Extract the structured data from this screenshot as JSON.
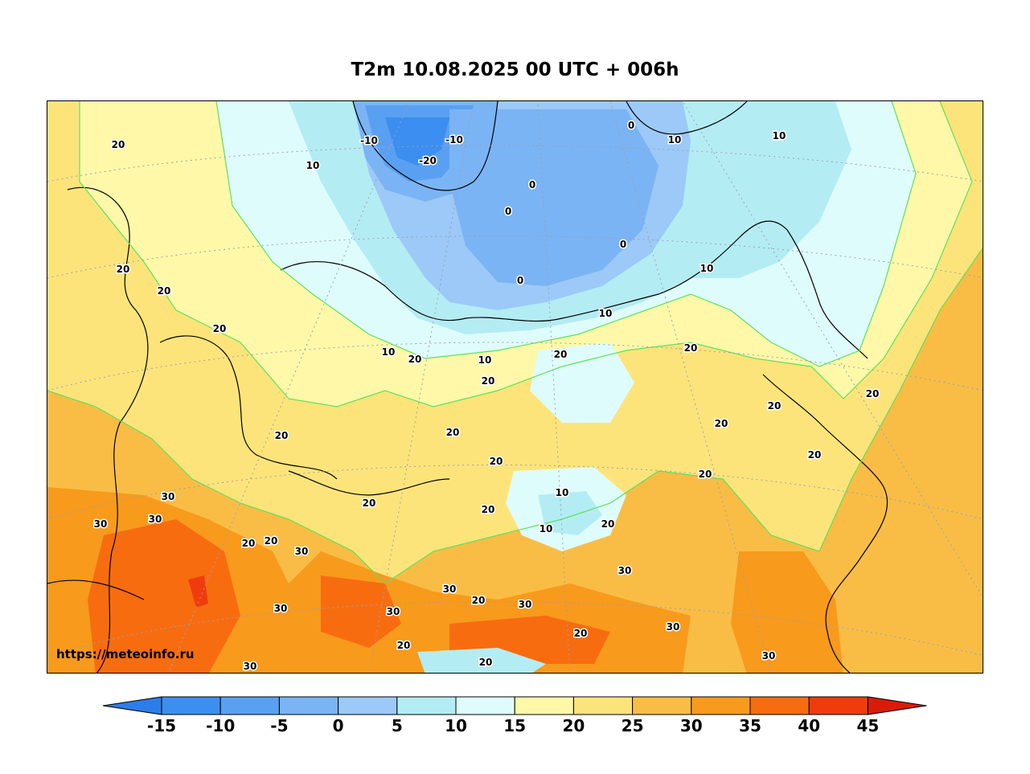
{
  "title": "T2m 10.08.2025 00 UTC + 006h",
  "watermark": "https://meteoinfo.ru",
  "colorbar": {
    "ticks": [
      "-15",
      "-10",
      "-5",
      "0",
      "5",
      "10",
      "15",
      "20",
      "25",
      "30",
      "35",
      "40",
      "45"
    ],
    "colors": [
      "#3c8ef0",
      "#5aa0f2",
      "#7ab4f5",
      "#9cc9f7",
      "#b4ecf4",
      "#dffcfc",
      "#fef8a8",
      "#fde47a",
      "#f9bd46",
      "#f89a1c",
      "#f86c10",
      "#f03c0c"
    ],
    "under_color": "#2d7de8",
    "over_color": "#d81c08"
  },
  "contour_labels": [
    {
      "text": "20"
    },
    {
      "text": "10"
    },
    {
      "text": "-10"
    },
    {
      "text": "-10"
    },
    {
      "text": "-20"
    },
    {
      "text": "0"
    },
    {
      "text": "0"
    },
    {
      "text": "0"
    },
    {
      "text": "0"
    },
    {
      "text": "10"
    },
    {
      "text": "10"
    },
    {
      "text": "10"
    },
    {
      "text": "0"
    },
    {
      "text": "20"
    },
    {
      "text": "20"
    },
    {
      "text": "20"
    },
    {
      "text": "10"
    },
    {
      "text": "20"
    },
    {
      "text": "10"
    },
    {
      "text": "20"
    },
    {
      "text": "20"
    },
    {
      "text": "10"
    },
    {
      "text": "20"
    },
    {
      "text": "20"
    },
    {
      "text": "20"
    },
    {
      "text": "20"
    },
    {
      "text": "20"
    },
    {
      "text": "20"
    },
    {
      "text": "20"
    },
    {
      "text": "20"
    },
    {
      "text": "20"
    },
    {
      "text": "20"
    },
    {
      "text": "10"
    },
    {
      "text": "20"
    },
    {
      "text": "10"
    },
    {
      "text": "20"
    },
    {
      "text": "30"
    },
    {
      "text": "30"
    },
    {
      "text": "30"
    },
    {
      "text": "20"
    },
    {
      "text": "20"
    },
    {
      "text": "30"
    },
    {
      "text": "30"
    },
    {
      "text": "30"
    },
    {
      "text": "20"
    },
    {
      "text": "30"
    },
    {
      "text": "30"
    },
    {
      "text": "30"
    },
    {
      "text": "20"
    },
    {
      "text": "30"
    },
    {
      "text": "20"
    },
    {
      "text": "20"
    },
    {
      "text": "30"
    },
    {
      "text": "30"
    }
  ]
}
